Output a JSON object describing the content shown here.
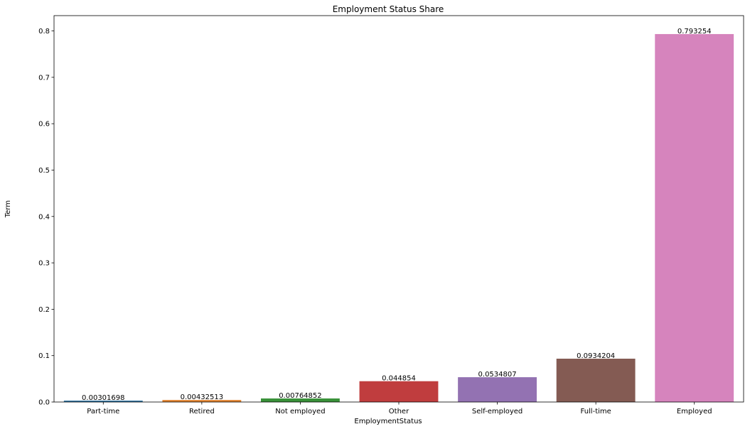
{
  "chart_data": {
    "type": "bar",
    "title": "Employment Status Share",
    "xlabel": "EmploymentStatus",
    "ylabel": "Term",
    "categories": [
      "Part-time",
      "Retired",
      "Not employed",
      "Other",
      "Self-employed",
      "Full-time",
      "Employed"
    ],
    "values": [
      0.00301698,
      0.00432513,
      0.00764852,
      0.044854,
      0.0534807,
      0.0934204,
      0.793254
    ],
    "value_labels": [
      "0.00301698",
      "0.00432513",
      "0.00764852",
      "0.044854",
      "0.0534807",
      "0.0934204",
      "0.793254"
    ],
    "colors": [
      "#3274a1",
      "#e1812c",
      "#3a923a",
      "#c03d3e",
      "#9372b2",
      "#845b53",
      "#d684bd"
    ],
    "ylim": [
      0,
      0.833
    ],
    "yticks": [
      0,
      0.1,
      0.2,
      0.3,
      0.4,
      0.5,
      0.6,
      0.7,
      0.8
    ],
    "ytick_labels": [
      "0.0",
      "0.1",
      "0.2",
      "0.3",
      "0.4",
      "0.5",
      "0.6",
      "0.7",
      "0.8"
    ],
    "grid": false,
    "legend": "none"
  }
}
